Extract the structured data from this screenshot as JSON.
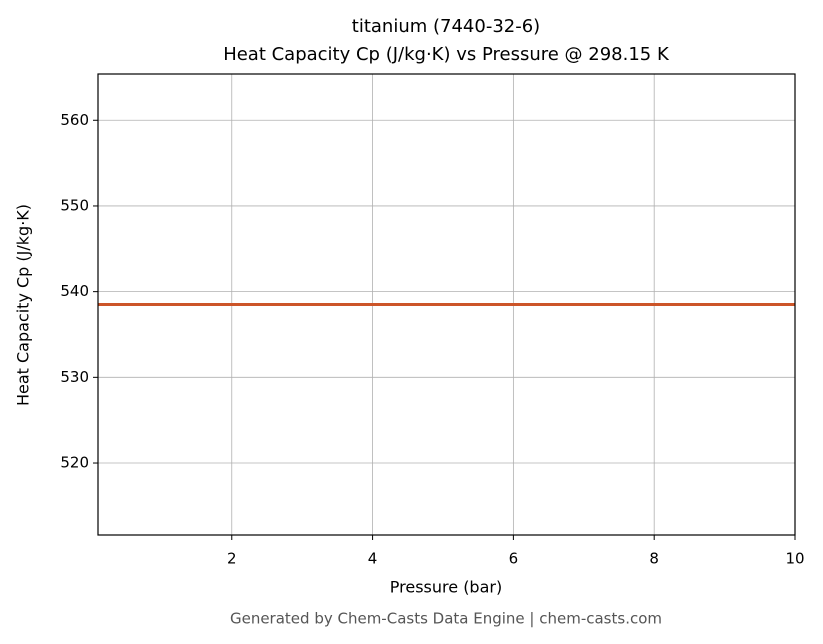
{
  "chart_data": {
    "type": "line",
    "title": "titanium (7440-32-6)",
    "subtitle": "Heat Capacity Cp (J/kg·K) vs Pressure @ 298.15 K",
    "x_label": "Pressure (bar)",
    "y_label": "Heat Capacity Cp (J/kg·K)",
    "footer": "Generated by Chem-Casts Data Engine | chem-casts.com",
    "x": [
      0.1,
      10
    ],
    "series": [
      {
        "name": "Cp",
        "color": "#cc5529",
        "values": [
          538.5,
          538.5
        ]
      }
    ],
    "xlim": [
      0.1,
      10
    ],
    "xticks": [
      2,
      4,
      6,
      8,
      10
    ],
    "ylim": [
      511.6,
      565.4
    ],
    "yticks": [
      520,
      530,
      540,
      550,
      560
    ],
    "grid": true
  }
}
